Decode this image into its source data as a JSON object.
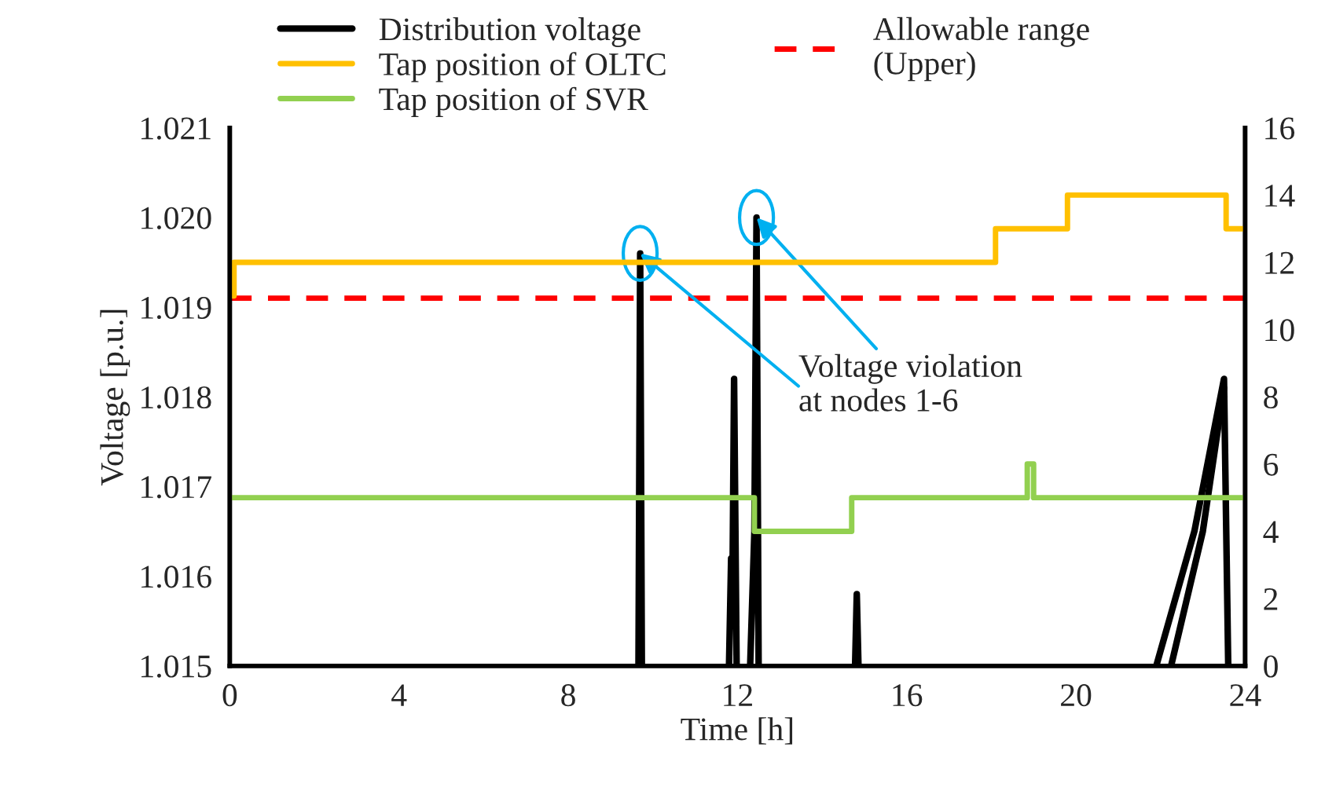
{
  "chart_data": {
    "type": "line",
    "xlabel": "Time [h]",
    "ylabel": "Voltage [p.u.]",
    "xlim": [
      0,
      24
    ],
    "xticks": [
      0,
      4,
      8,
      12,
      16,
      20,
      24
    ],
    "ylim": [
      1.015,
      1.021
    ],
    "yticks": [
      1.015,
      1.016,
      1.017,
      1.018,
      1.019,
      {
        "value": 1.02,
        "label": "1.020"
      },
      1.021
    ],
    "y2lim": [
      0,
      16
    ],
    "y2ticks": [
      0,
      2,
      4,
      6,
      8,
      10,
      12,
      14,
      16
    ],
    "series": [
      {
        "name": "Distribution voltage",
        "color": "#000000",
        "x": [
          9.66,
          9.7,
          9.74,
          9.8,
          11.8,
          11.85,
          11.88,
          11.92,
          11.98,
          12.05,
          12.3,
          12.4,
          12.45,
          12.5,
          12.6,
          14.78,
          14.82,
          14.86,
          14.9,
          21.9,
          22.8,
          23.5,
          23.6
        ],
        "values": [
          1.015,
          1.0196,
          1.015,
          null,
          1.015,
          1.0162,
          1.0158,
          1.0182,
          1.015,
          null,
          1.015,
          1.0165,
          1.02,
          1.015,
          null,
          1.015,
          1.0158,
          1.015,
          null,
          1.015,
          1.0165,
          1.0182,
          1.015
        ]
      },
      {
        "color": "#000000",
        "x": [
          22.25,
          23.0,
          23.5
        ],
        "values": [
          1.015,
          1.0165,
          1.0181
        ]
      },
      {
        "name": "Tap position of OLTC",
        "type": "step",
        "axis": "y2",
        "color": "#ffc000",
        "x": [
          0,
          0.1,
          18.1,
          19.8,
          23.55,
          24
        ],
        "values": [
          11,
          12,
          13,
          14,
          13,
          13
        ]
      },
      {
        "name": "Tap position of SVR",
        "type": "step",
        "axis": "y2",
        "color": "#92d050",
        "x": [
          0,
          12.4,
          14.7,
          18.85,
          19.0,
          24
        ],
        "values": [
          5,
          4,
          5,
          6,
          5,
          5
        ]
      }
    ],
    "ref_lines": [
      {
        "axis": "y",
        "value": 1.0191,
        "label": "Allowable range\n(Upper)",
        "color": "#ff0000",
        "line_style": "dashed"
      }
    ],
    "annotations": [
      {
        "text": "Voltage violation\nat nodes 1-6",
        "x": 12.45,
        "y": 1.02
      }
    ],
    "legend": "top",
    "grid": false
  }
}
